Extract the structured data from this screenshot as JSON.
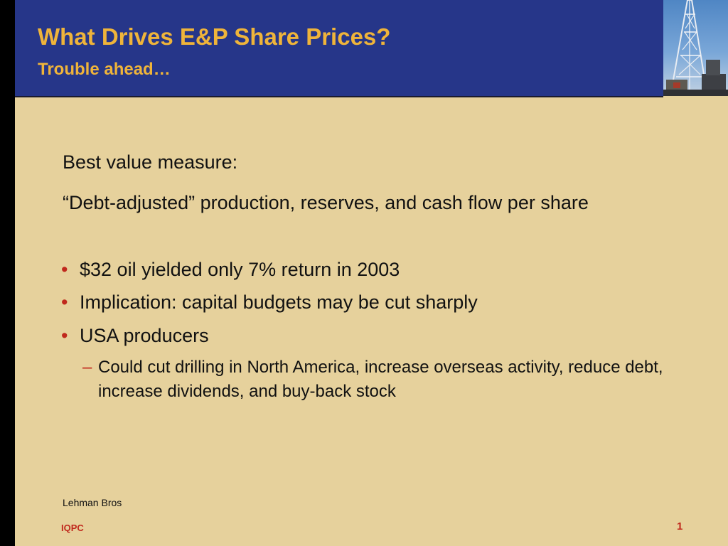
{
  "slide": {
    "title": "What Drives E&P Share Prices?",
    "subtitle": "Trouble ahead…",
    "intro_label": "Best value measure:",
    "intro_detail": "“Debt-adjusted” production, reserves, and cash flow per share",
    "bullets": [
      {
        "marker": "•",
        "text": "$32 oil yielded only 7% return in 2003"
      },
      {
        "marker": "•",
        "text": "Implication: capital budgets may be cut sharply"
      },
      {
        "marker": "•",
        "text": "USA producers"
      }
    ],
    "sub_bullet": {
      "marker": "–",
      "text": "Could cut drilling in North America, increase overseas activity, reduce debt, increase dividends, and buy-back stock"
    },
    "source": "Lehman Bros",
    "footer": "IQPC",
    "page_number": "1"
  },
  "colors": {
    "background": "#e6d19c",
    "header": "#263689",
    "title": "#efb43a",
    "accent": "#c0281c",
    "sidebar": "#000000"
  },
  "icons": {
    "header_image": "oil-rig-photo"
  }
}
